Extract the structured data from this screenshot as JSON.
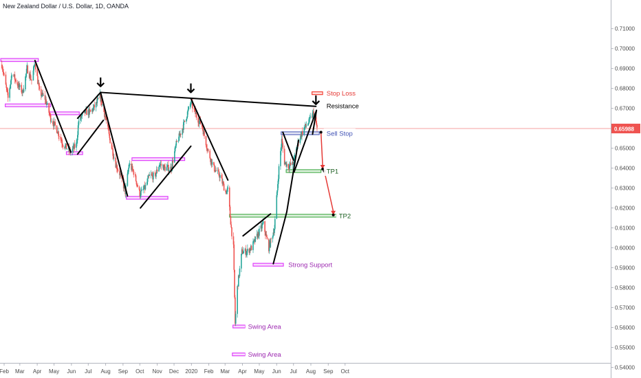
{
  "symbol_title": "New Zealand Dollar / U.S. Dollar, 1D, OANDA",
  "colors": {
    "up": "#26a69a",
    "down": "#ef5350",
    "zone_purple": "#e040fb",
    "zone_blue": "#5c6bc0",
    "zone_green": "#4caf50",
    "zone_red": "#f44336",
    "trendline": "#000000",
    "label_purple": "#9c27b0",
    "label_blue": "#3f51b5",
    "label_green": "#1b5e20",
    "label_red": "#e53935",
    "price_line": "#f08080",
    "price_badge": "#ef5350"
  },
  "chart_data": {
    "type": "candlestick",
    "title": "New Zealand Dollar / U.S. Dollar, 1D, OANDA",
    "ylim": [
      0.535,
      0.7125
    ],
    "y_ticks": [
      "0.54000",
      "0.55000",
      "0.56000",
      "0.57000",
      "0.58000",
      "0.59000",
      "0.60000",
      "0.61000",
      "0.62000",
      "0.63000",
      "0.64000",
      "0.65000",
      "0.66000",
      "0.67000",
      "0.68000",
      "0.69000",
      "0.70000",
      "0.71000"
    ],
    "x_ticks": [
      "Feb",
      "Mar",
      "Apr",
      "May",
      "Jun",
      "Jul",
      "Aug",
      "Sep",
      "Oct",
      "Nov",
      "Dec",
      "2020",
      "Feb",
      "Mar",
      "Apr",
      "May",
      "Jun",
      "Jul",
      "Aug",
      "Sep",
      "Oct"
    ],
    "last_price": "0.65988",
    "path": [
      [
        "2019-01-28",
        0.692
      ],
      [
        "2019-02-08",
        0.675
      ],
      [
        "2019-02-15",
        0.688
      ],
      [
        "2019-02-25",
        0.682
      ],
      [
        "2019-03-06",
        0.678
      ],
      [
        "2019-03-14",
        0.69
      ],
      [
        "2019-03-22",
        0.684
      ],
      [
        "2019-03-28",
        0.693
      ],
      [
        "2019-04-05",
        0.678
      ],
      [
        "2019-04-15",
        0.675
      ],
      [
        "2019-04-25",
        0.665
      ],
      [
        "2019-05-05",
        0.66
      ],
      [
        "2019-05-17",
        0.652
      ],
      [
        "2019-05-31",
        0.648
      ],
      [
        "2019-06-10",
        0.652
      ],
      [
        "2019-06-14",
        0.664
      ],
      [
        "2019-06-25",
        0.668
      ],
      [
        "2019-07-05",
        0.668
      ],
      [
        "2019-07-15",
        0.672
      ],
      [
        "2019-07-22",
        0.676
      ],
      [
        "2019-08-01",
        0.665
      ],
      [
        "2019-08-08",
        0.655
      ],
      [
        "2019-08-19",
        0.642
      ],
      [
        "2019-08-28",
        0.636
      ],
      [
        "2019-09-05",
        0.628
      ],
      [
        "2019-09-12",
        0.642
      ],
      [
        "2019-09-20",
        0.638
      ],
      [
        "2019-10-01",
        0.627
      ],
      [
        "2019-10-10",
        0.63
      ],
      [
        "2019-10-18",
        0.636
      ],
      [
        "2019-10-28",
        0.636
      ],
      [
        "2019-11-05",
        0.642
      ],
      [
        "2019-11-15",
        0.64
      ],
      [
        "2019-11-26",
        0.64
      ],
      [
        "2019-12-05",
        0.652
      ],
      [
        "2019-12-16",
        0.66
      ],
      [
        "2019-12-31",
        0.673
      ],
      [
        "2020-01-10",
        0.666
      ],
      [
        "2020-01-20",
        0.661
      ],
      [
        "2020-01-31",
        0.648
      ],
      [
        "2020-02-10",
        0.64
      ],
      [
        "2020-02-21",
        0.636
      ],
      [
        "2020-03-02",
        0.628
      ],
      [
        "2020-03-06",
        0.629
      ],
      [
        "2020-03-12",
        0.61
      ],
      [
        "2020-03-16",
        0.6
      ],
      [
        "2020-03-19",
        0.562
      ],
      [
        "2020-03-23",
        0.58
      ],
      [
        "2020-03-31",
        0.598
      ],
      [
        "2020-04-08",
        0.598
      ],
      [
        "2020-04-17",
        0.6
      ],
      [
        "2020-04-29",
        0.607
      ],
      [
        "2020-05-08",
        0.612
      ],
      [
        "2020-05-18",
        0.6
      ],
      [
        "2020-05-28",
        0.61
      ],
      [
        "2020-06-05",
        0.64
      ],
      [
        "2020-06-10",
        0.654
      ],
      [
        "2020-06-15",
        0.643
      ],
      [
        "2020-06-22",
        0.641
      ],
      [
        "2020-06-30",
        0.642
      ],
      [
        "2020-07-10",
        0.654
      ],
      [
        "2020-07-20",
        0.66
      ],
      [
        "2020-07-28",
        0.663
      ],
      [
        "2020-08-06",
        0.668
      ],
      [
        "2020-08-12",
        0.66
      ]
    ],
    "trendlines": [
      {
        "from": [
          "2019-03-28",
          0.694
        ],
        "to": [
          "2019-05-31",
          0.648
        ]
      },
      {
        "from": [
          "2019-06-12",
          0.665
        ],
        "to": [
          "2019-07-23",
          0.678
        ]
      },
      {
        "from": [
          "2019-06-12",
          0.647
        ],
        "to": [
          "2019-07-28",
          0.664
        ]
      },
      {
        "from": [
          "2019-07-23",
          0.678
        ],
        "to": [
          "2019-09-09",
          0.626
        ]
      },
      {
        "from": [
          "2019-07-23",
          0.678
        ],
        "to": [
          "2020-08-10",
          0.671
        ]
      },
      {
        "from": [
          "2019-10-02",
          0.62
        ],
        "to": [
          "2019-12-31",
          0.651
        ]
      },
      {
        "from": [
          "2019-12-31",
          0.675
        ],
        "to": [
          "2020-03-06",
          0.634
        ]
      },
      {
        "from": [
          "2020-04-02",
          0.606
        ],
        "to": [
          "2020-05-21",
          0.617
        ]
      },
      {
        "from": [
          "2020-05-26",
          0.592
        ],
        "to": [
          "2020-06-19",
          0.618
        ]
      },
      {
        "from": [
          "2020-06-19",
          0.618
        ],
        "to": [
          "2020-07-10",
          0.654
        ]
      },
      {
        "from": [
          "2020-06-12",
          0.658
        ],
        "to": [
          "2020-07-01",
          0.644
        ]
      },
      {
        "from": [
          "2020-07-02",
          0.638
        ],
        "to": [
          "2020-08-11",
          0.669
        ]
      },
      {
        "from": [
          "2020-08-04",
          0.657
        ],
        "to": [
          "2020-08-11",
          0.669
        ]
      }
    ],
    "zones": [
      {
        "color": "zone_purple",
        "from": "2019-01-26",
        "to": "2019-04-03",
        "y1": 0.695,
        "y2": 0.6935
      },
      {
        "color": "zone_purple",
        "from": "2019-02-03",
        "to": "2019-04-25",
        "y1": 0.6722,
        "y2": 0.6708
      },
      {
        "color": "zone_purple",
        "from": "2019-04-23",
        "to": "2019-06-15",
        "y1": 0.6682,
        "y2": 0.6668
      },
      {
        "color": "zone_purple",
        "from": "2019-05-23",
        "to": "2019-06-21",
        "y1": 0.6482,
        "y2": 0.6468
      },
      {
        "color": "zone_purple",
        "from": "2019-09-07",
        "to": "2019-11-20",
        "y1": 0.6258,
        "y2": 0.6244
      },
      {
        "color": "zone_purple",
        "from": "2019-09-17",
        "to": "2019-12-20",
        "y1": 0.6452,
        "y2": 0.6438
      },
      {
        "color": "zone_purple",
        "from": "2020-03-15",
        "to": "2020-04-06",
        "y1": 0.5612,
        "y2": 0.5598
      },
      {
        "color": "zone_purple",
        "from": "2020-03-14",
        "to": "2020-04-06",
        "y1": 0.5472,
        "y2": 0.5458
      },
      {
        "color": "zone_purple",
        "from": "2020-04-20",
        "to": "2020-06-13",
        "y1": 0.5922,
        "y2": 0.5908
      },
      {
        "color": "zone_blue",
        "from": "2020-06-09",
        "to": "2020-08-16",
        "y1": 0.6582,
        "y2": 0.6568
      },
      {
        "color": "zone_green",
        "from": "2020-03-09",
        "to": "2020-09-16",
        "y1": 0.6168,
        "y2": 0.6154
      },
      {
        "color": "zone_green",
        "from": "2020-06-18",
        "to": "2020-08-19",
        "y1": 0.6392,
        "y2": 0.6378
      },
      {
        "color": "zone_red",
        "from": "2020-08-03",
        "to": "2020-08-22",
        "y1": 0.6783,
        "y2": 0.6769
      }
    ],
    "arrows_down": [
      {
        "x": "2019-07-23",
        "y": 0.681
      },
      {
        "x": "2019-12-31",
        "y": 0.678
      },
      {
        "x": "2020-08-10",
        "y": 0.672
      }
    ],
    "projection": [
      {
        "from": [
          "2020-08-19",
          0.658
        ],
        "to": [
          "2020-08-22",
          0.6395
        ]
      },
      {
        "from": [
          "2020-08-25",
          0.6385
        ],
        "to": [
          "2020-09-10",
          0.6165
        ]
      }
    ],
    "projection_points": [
      [
        "2020-08-19",
        0.658
      ],
      [
        "2020-08-22",
        0.6395
      ],
      [
        "2020-08-25",
        0.6385
      ],
      [
        "2020-09-10",
        0.6165
      ]
    ],
    "labels": [
      {
        "text": "Stop Loss",
        "x": "2020-08-24",
        "y": 0.6776,
        "color": "label_red"
      },
      {
        "text": "Resistance",
        "x": "2020-08-24",
        "y": 0.6712,
        "color": "trendline"
      },
      {
        "text": "Sell Stop",
        "x": "2020-08-24",
        "y": 0.6575,
        "color": "label_blue"
      },
      {
        "text": "TP1",
        "x": "2020-08-24",
        "y": 0.6385,
        "color": "label_green"
      },
      {
        "text": "TP2",
        "x": "2020-09-15",
        "y": 0.6161,
        "color": "label_green"
      },
      {
        "text": "Strong Support",
        "x": "2020-06-17",
        "y": 0.5915,
        "color": "label_purple"
      },
      {
        "text": "Swing Area",
        "x": "2020-04-06",
        "y": 0.5605,
        "color": "label_purple"
      },
      {
        "text": "Swing Area",
        "x": "2020-04-06",
        "y": 0.5465,
        "color": "label_purple"
      }
    ]
  }
}
